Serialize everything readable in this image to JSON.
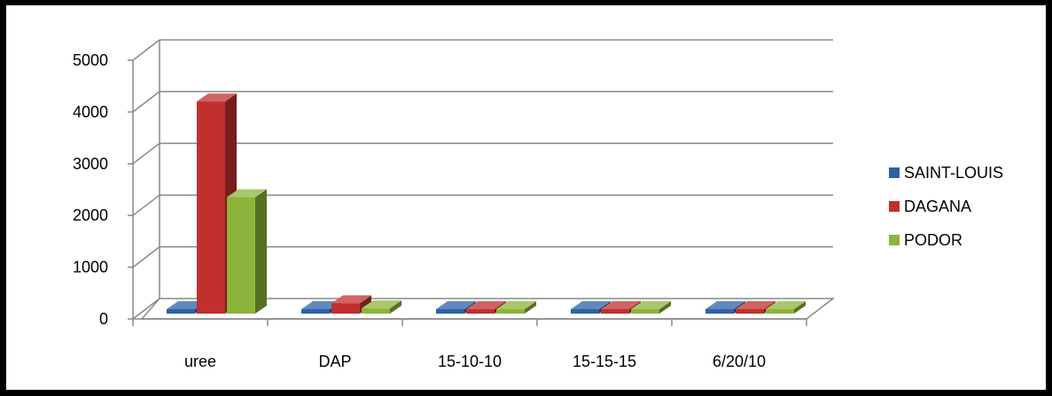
{
  "chart_data": {
    "type": "bar",
    "style": "3d-clustered-column",
    "categories": [
      "uree",
      "DAP",
      "15-10-10",
      "15-15-15",
      "6/20/10"
    ],
    "series": [
      {
        "name": "SAINT-LOUIS",
        "color": "#2E62A8",
        "values": [
          0,
          0,
          0,
          0,
          0
        ]
      },
      {
        "name": "DAGANA",
        "color": "#C0302D",
        "values": [
          4100,
          200,
          0,
          0,
          0
        ]
      },
      {
        "name": "PODOR",
        "color": "#8CB43A",
        "values": [
          2250,
          100,
          0,
          0,
          0
        ]
      }
    ],
    "yticks": [
      0,
      1000,
      2000,
      3000,
      4000,
      5000
    ],
    "ylim": [
      0,
      5000
    ],
    "grid": true,
    "legend": "right"
  }
}
